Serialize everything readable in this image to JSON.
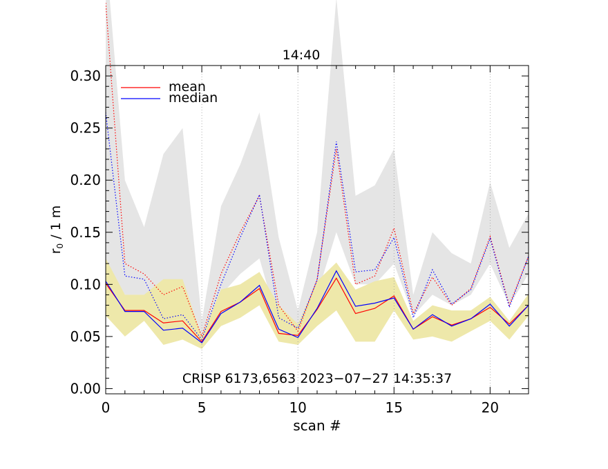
{
  "chart_data": {
    "type": "line",
    "title": "14:40",
    "xlabel": "scan #",
    "ylabel_main": "r",
    "ylabel_sub": "0",
    "ylabel_rest": " / 1 m",
    "annotation": "CRISP 6173,6563 2023−07−27 14:35:37",
    "xlim": [
      0,
      22
    ],
    "ylim": [
      -0.005,
      0.31
    ],
    "xticks": [
      0,
      5,
      10,
      15,
      20
    ],
    "xtick_labels": [
      "0",
      "5",
      "10",
      "15",
      "20"
    ],
    "yticks": [
      0.0,
      0.05,
      0.1,
      0.15,
      0.2,
      0.25,
      0.3
    ],
    "ytick_labels": [
      "0.00",
      "0.05",
      "0.10",
      "0.15",
      "0.20",
      "0.25",
      "0.30"
    ],
    "vgrid": [
      5,
      10,
      15,
      20
    ],
    "legend": {
      "position": "top-left",
      "entries": [
        {
          "label": "mean",
          "color": "#ff0000"
        },
        {
          "label": "median",
          "color": "#0000ff"
        }
      ]
    },
    "x": [
      0,
      1,
      2,
      3,
      4,
      5,
      6,
      7,
      8,
      9,
      10,
      11,
      12,
      13,
      14,
      15,
      16,
      17,
      18,
      19,
      20,
      21,
      22
    ],
    "bands": [
      {
        "name": "upper range",
        "color": "#e5e5e5",
        "lower": [
          0.12,
          0.09,
          0.09,
          0.09,
          0.09,
          0.045,
          0.09,
          0.11,
          0.125,
          0.06,
          0.055,
          0.09,
          0.15,
          0.1,
          0.1,
          0.12,
          0.07,
          0.09,
          0.08,
          0.09,
          0.12,
          0.08,
          0.11
        ],
        "upper": [
          0.42,
          0.2,
          0.155,
          0.225,
          0.25,
          0.065,
          0.175,
          0.215,
          0.265,
          0.145,
          0.075,
          0.15,
          0.375,
          0.185,
          0.195,
          0.23,
          0.09,
          0.15,
          0.13,
          0.12,
          0.198,
          0.135,
          0.168
        ]
      },
      {
        "name": "lower range",
        "color": "#eee8aa",
        "lower": [
          0.07,
          0.05,
          0.065,
          0.042,
          0.047,
          0.038,
          0.06,
          0.068,
          0.08,
          0.045,
          0.042,
          0.06,
          0.075,
          0.045,
          0.045,
          0.075,
          0.047,
          0.05,
          0.045,
          0.055,
          0.065,
          0.047,
          0.07
        ],
        "upper": [
          0.125,
          0.09,
          0.09,
          0.105,
          0.105,
          0.05,
          0.095,
          0.1,
          0.112,
          0.08,
          0.062,
          0.103,
          0.121,
          0.095,
          0.103,
          0.107,
          0.065,
          0.08,
          0.075,
          0.075,
          0.088,
          0.065,
          0.091
        ]
      }
    ],
    "series": [
      {
        "name": "mean",
        "style": "solid",
        "color": "#ff0000",
        "values": [
          0.101,
          0.075,
          0.075,
          0.063,
          0.065,
          0.045,
          0.074,
          0.083,
          0.096,
          0.053,
          0.051,
          0.076,
          0.106,
          0.072,
          0.077,
          0.089,
          0.057,
          0.069,
          0.061,
          0.067,
          0.078,
          0.062,
          0.08
        ]
      },
      {
        "name": "median",
        "style": "solid",
        "color": "#0000ff",
        "values": [
          0.103,
          0.074,
          0.074,
          0.056,
          0.058,
          0.044,
          0.072,
          0.083,
          0.099,
          0.057,
          0.049,
          0.077,
          0.113,
          0.079,
          0.082,
          0.087,
          0.057,
          0.071,
          0.06,
          0.067,
          0.081,
          0.06,
          0.08
        ]
      },
      {
        "name": "mean (upper)",
        "style": "dotted",
        "color": "#ff0000",
        "values": [
          0.37,
          0.12,
          0.11,
          0.09,
          0.098,
          0.05,
          0.11,
          0.15,
          0.185,
          0.08,
          0.055,
          0.105,
          0.23,
          0.1,
          0.108,
          0.154,
          0.072,
          0.107,
          0.08,
          0.096,
          0.146,
          0.08,
          0.127
        ]
      },
      {
        "name": "median (upper)",
        "style": "dotted",
        "color": "#0000ff",
        "values": [
          0.265,
          0.108,
          0.105,
          0.067,
          0.071,
          0.047,
          0.1,
          0.145,
          0.186,
          0.068,
          0.058,
          0.104,
          0.237,
          0.112,
          0.114,
          0.145,
          0.068,
          0.114,
          0.081,
          0.095,
          0.144,
          0.078,
          0.127
        ]
      }
    ]
  }
}
